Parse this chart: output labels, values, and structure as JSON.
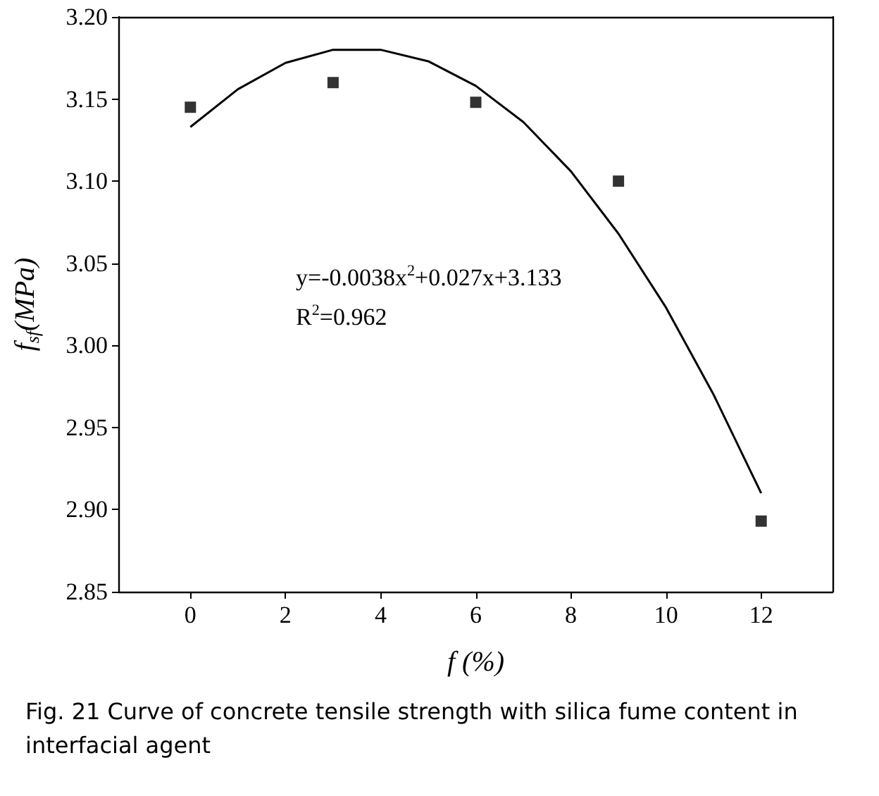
{
  "chart_data": {
    "type": "scatter",
    "xlabel": "f (%)",
    "ylabel": "f$_{sf}$(MPa)",
    "xlim": [
      -1.5,
      13.5
    ],
    "xticks": [
      0,
      2,
      4,
      6,
      8,
      10,
      12
    ],
    "ylim": [
      2.85,
      3.2
    ],
    "yticks": [
      2.85,
      {
        "value": 2.9,
        "label": "2.90"
      },
      2.95,
      {
        "value": 3.0,
        "label": "3.00"
      },
      3.05,
      {
        "value": 3.1,
        "label": "3.10"
      },
      3.15,
      {
        "value": 3.2,
        "label": "3.20"
      }
    ],
    "grid": false,
    "series": [
      {
        "marker": "square",
        "color": "#000000",
        "x": [
          0,
          3,
          6,
          9,
          12
        ],
        "values": [
          3.145,
          3.16,
          3.148,
          3.1,
          2.893
        ]
      },
      {
        "type": "line",
        "marker": "none",
        "line_style": "solid",
        "color": "#000000",
        "x": [
          0,
          1,
          2,
          3,
          4,
          5,
          6,
          7,
          8,
          9,
          10,
          11,
          12
        ],
        "values": [
          3.133,
          3.156,
          3.172,
          3.18,
          3.18,
          3.173,
          3.158,
          3.136,
          3.106,
          3.068,
          3.023,
          2.97,
          2.91
        ]
      }
    ],
    "annotations": [
      "y=-0.0038x$^{2}$+0.027x+3.133",
      "R$^{2}$=0.962",
      "Fig. 21 Curve of concrete tensile strength with silica fume content in interfacial agent"
    ]
  }
}
